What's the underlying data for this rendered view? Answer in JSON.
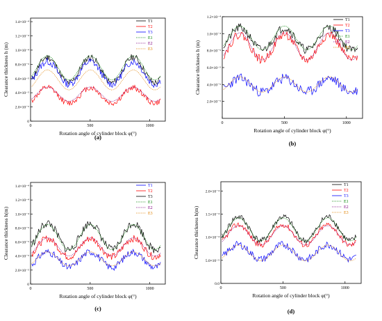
{
  "figure": {
    "panels": [
      {
        "letter": "(a)",
        "ylabel": "Clearance thickness h (m)",
        "xlabel": "Rotation angle of cylinder block φ(°)"
      },
      {
        "letter": "(b)",
        "ylabel": "Clearance thickness h (m)",
        "xlabel": "Rotation angle of cylinder block φ(°)"
      },
      {
        "letter": "(c)",
        "ylabel": "Clearance thickness h(m)",
        "xlabel": "Rotation angle of cylinder block φ(°)"
      },
      {
        "letter": "(d)",
        "ylabel": "Clearance thickness h(m)",
        "xlabel": "Rotation angle of cylinder block φ(°)"
      }
    ]
  },
  "chart_data": [
    {
      "type": "line",
      "panel": "(a)",
      "xlabel": "Rotation angle of cylinder block φ(°)",
      "ylabel": "Clearance thickness h (m)",
      "xlim": [
        0,
        1130
      ],
      "ylim": [
        0,
        0.000145
      ],
      "xticks": [
        0,
        500,
        1000
      ],
      "xtick_labels": [
        "0",
        "500",
        "1000"
      ],
      "yticks": [
        0,
        2e-05,
        4e-05,
        6e-05,
        8e-05,
        0.0001,
        0.00012,
        0.00014
      ],
      "ytick_labels": [
        "0",
        "2.0×10⁻⁵",
        "4.0×10⁻⁵",
        "6.0×10⁻⁵",
        "8.0×10⁻⁵",
        "1.0×10⁻⁴",
        "1.2×10⁻⁴",
        "1.4×10⁻⁴"
      ],
      "legend_position": "top-right",
      "series": [
        {
          "name": "T1",
          "color": "#000000",
          "style": "solid",
          "base": 7.2e-05,
          "amp": 1.8e-05,
          "noise": 5e-06,
          "seed": 11
        },
        {
          "name": "T2",
          "color": "#ff0000",
          "style": "solid",
          "base": 3.6e-05,
          "amp": 1.1e-05,
          "noise": 4e-06,
          "seed": 12
        },
        {
          "name": "T3",
          "color": "#0000ff",
          "style": "solid",
          "base": 6.8e-05,
          "amp": 1.6e-05,
          "noise": 5e-06,
          "seed": 13
        },
        {
          "name": "E1",
          "color": "#008000",
          "style": "dot",
          "base": 7.5e-05,
          "amp": 1.7e-05,
          "noise": 0,
          "seed": 14
        },
        {
          "name": "E2",
          "color": "#800080",
          "style": "dot",
          "base": 3.8e-05,
          "amp": 1e-05,
          "noise": 0,
          "seed": 15
        },
        {
          "name": "E3",
          "color": "#e08000",
          "style": "dot",
          "base": 5.8e-05,
          "amp": 1.4e-05,
          "noise": 0,
          "seed": 16
        }
      ]
    },
    {
      "type": "line",
      "panel": "(b)",
      "xlabel": "Rotation angle of cylinder block φ(°)",
      "ylabel": "Clearance thickness h (m)",
      "xlim": [
        0,
        1130
      ],
      "ylim": [
        0,
        0.00012
      ],
      "xticks": [
        0,
        500,
        1000
      ],
      "xtick_labels": [
        "0",
        "500",
        "1000"
      ],
      "yticks": [
        2e-05,
        4e-05,
        6e-05,
        8e-05,
        0.0001,
        0.00012
      ],
      "ytick_labels": [
        "2.0×10⁻⁵",
        "4.0×10⁻⁵",
        "6.0×10⁻⁵",
        "8.0×10⁻⁵",
        "1.0×10⁻⁴",
        "1.2×10⁻⁴"
      ],
      "legend_position": "top-right",
      "series": [
        {
          "name": "T1",
          "color": "#000000",
          "style": "solid",
          "base": 9.4e-05,
          "amp": 1.3e-05,
          "noise": 5e-06,
          "seed": 21
        },
        {
          "name": "T2",
          "color": "#ff0000",
          "style": "solid",
          "base": 8.4e-05,
          "amp": 1.5e-05,
          "noise": 5e-06,
          "seed": 22
        },
        {
          "name": "T3",
          "color": "#0000ff",
          "style": "solid",
          "base": 3.9e-05,
          "amp": 8e-06,
          "noise": 6e-06,
          "seed": 23
        },
        {
          "name": "E1",
          "color": "#008000",
          "style": "dot",
          "base": 9.5e-05,
          "amp": 1.4e-05,
          "noise": 0,
          "seed": 24
        },
        {
          "name": "E2",
          "color": "#800080",
          "style": "dot",
          "base": 8.5e-05,
          "amp": 1.6e-05,
          "noise": 0,
          "seed": 25
        },
        {
          "name": "E3",
          "color": "#e08000",
          "style": "dot",
          "base": 4e-05,
          "amp": 9e-06,
          "noise": 0,
          "seed": 26
        }
      ]
    },
    {
      "type": "line",
      "panel": "(c)",
      "xlabel": "Rotation angle of cylinder block φ(°)",
      "ylabel": "Clearance thickness h(m)",
      "xlim": [
        0,
        1130
      ],
      "ylim": [
        0,
        0.000145
      ],
      "xticks": [
        0,
        500,
        1000
      ],
      "xtick_labels": [
        "0",
        "500",
        "1000"
      ],
      "yticks": [
        0,
        2e-05,
        4e-05,
        6e-05,
        8e-05,
        0.0001,
        0.00012,
        0.00014
      ],
      "ytick_labels": [
        "0",
        "2.0×10⁻⁵",
        "4.0×10⁻⁵",
        "6.0×10⁻⁵",
        "8.0×10⁻⁵",
        "1.0×10⁻⁴",
        "1.2×10⁻⁴",
        "1.4×10⁻⁴"
      ],
      "legend_position": "top-right",
      "series": [
        {
          "name": "T1",
          "color": "#0000ff",
          "style": "solid",
          "base": 3.5e-05,
          "amp": 1.1e-05,
          "noise": 5e-06,
          "seed": 31
        },
        {
          "name": "T2",
          "color": "#ff0000",
          "style": "solid",
          "base": 5.2e-05,
          "amp": 1.3e-05,
          "noise": 5e-06,
          "seed": 32
        },
        {
          "name": "T3",
          "color": "#000000",
          "style": "solid",
          "base": 6.8e-05,
          "amp": 1.9e-05,
          "noise": 6e-06,
          "seed": 33
        },
        {
          "name": "E1",
          "color": "#008000",
          "style": "dot",
          "base": 6.7e-05,
          "amp": 1.8e-05,
          "noise": 0,
          "seed": 34
        },
        {
          "name": "E2",
          "color": "#800080",
          "style": "dot",
          "base": 5.3e-05,
          "amp": 1.3e-05,
          "noise": 0,
          "seed": 35
        },
        {
          "name": "E3",
          "color": "#e08000",
          "style": "dot",
          "base": 3.6e-05,
          "amp": 1e-05,
          "noise": 0,
          "seed": 36
        }
      ]
    },
    {
      "type": "line",
      "panel": "(d)",
      "xlabel": "Rotation angle of cylinder block φ(°)",
      "ylabel": "Clearance thickness h(m)",
      "xlim": [
        0,
        1130
      ],
      "ylim": [
        0,
        0.00022
      ],
      "xticks": [
        0,
        500,
        1000
      ],
      "xtick_labels": [
        "0",
        "500",
        "1000"
      ],
      "yticks": [
        0,
        5e-05,
        0.0001,
        0.00015,
        0.0002
      ],
      "ytick_labels": [
        "0.0",
        "5.0×10⁻⁵",
        "1.0×10⁻⁴",
        "1.5×10⁻⁴",
        "2.0×10⁻⁴"
      ],
      "legend_position": "top-right",
      "series": [
        {
          "name": "T1",
          "color": "#000000",
          "style": "solid",
          "base": 0.000118,
          "amp": 2.6e-05,
          "noise": 7e-06,
          "seed": 41
        },
        {
          "name": "T2",
          "color": "#ff0000",
          "style": "solid",
          "base": 0.000105,
          "amp": 2.2e-05,
          "noise": 6e-06,
          "seed": 42
        },
        {
          "name": "T3",
          "color": "#0000ff",
          "style": "solid",
          "base": 6.8e-05,
          "amp": 1.6e-05,
          "noise": 8e-06,
          "seed": 43
        },
        {
          "name": "E1",
          "color": "#008000",
          "style": "dot",
          "base": 0.000117,
          "amp": 2.5e-05,
          "noise": 0,
          "seed": 44
        },
        {
          "name": "E2",
          "color": "#800080",
          "style": "dot",
          "base": 0.000104,
          "amp": 2.1e-05,
          "noise": 0,
          "seed": 45
        },
        {
          "name": "E3",
          "color": "#e08000",
          "style": "dot",
          "base": 6.6e-05,
          "amp": 1.7e-05,
          "noise": 0,
          "seed": 46
        }
      ]
    }
  ]
}
